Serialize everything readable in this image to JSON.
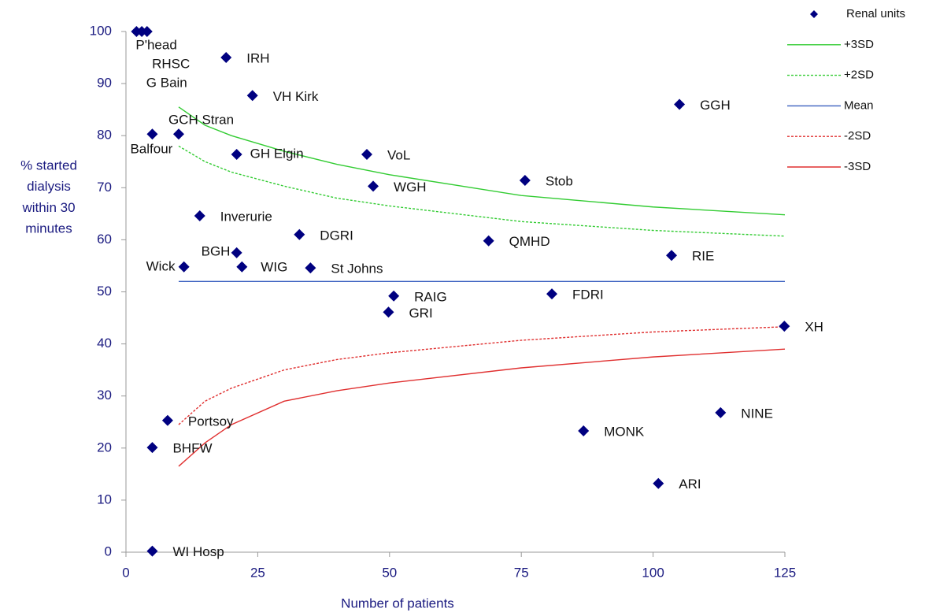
{
  "chart_data": {
    "type": "scatter",
    "xlabel": "Number of patients",
    "ylabel": [
      "% started",
      "dialysis",
      "within 30",
      "minutes"
    ],
    "xlim": [
      0,
      125
    ],
    "xticks": [
      0,
      25,
      50,
      75,
      100,
      125
    ],
    "ylim": [
      0,
      100
    ],
    "yticks": [
      0,
      10,
      20,
      30,
      40,
      50,
      60,
      70,
      80,
      90,
      100
    ],
    "grid": false,
    "legend": "right",
    "series": [
      {
        "name": "Renal units",
        "type": "scatter",
        "color": "#000080",
        "x": [
          2,
          3,
          4,
          19,
          24,
          105,
          10,
          5,
          21,
          45.7,
          46.9,
          75.7,
          14,
          32.9,
          68.8,
          103.5,
          21,
          11,
          22,
          35,
          50.8,
          80.8,
          49.8,
          124.9,
          7.9,
          5,
          86.8,
          112.8,
          101,
          5
        ],
        "values": [
          100,
          100,
          100,
          95,
          87.7,
          86,
          80.3,
          80.3,
          76.4,
          76.4,
          70.3,
          71.4,
          64.6,
          61,
          59.8,
          57,
          57.5,
          54.8,
          54.8,
          54.6,
          49.2,
          49.6,
          46.1,
          43.4,
          25.3,
          20.1,
          23.3,
          26.8,
          13.2,
          0.2
        ],
        "labels": [
          "P'head",
          "RHSC",
          "G Bain",
          "IRH",
          "VH Kirk",
          "GGH",
          "GCH Stran",
          "Balfour",
          "GH Elgin",
          "VoL",
          "WGH",
          "Stob",
          "Inverurie",
          "DGRI",
          "QMHD",
          "RIE",
          "BGH",
          "Wick",
          "WIG",
          "St Johns",
          "RAIG",
          "FDRI",
          "GRI",
          "XH",
          "Portsoy",
          "BHFW",
          "MONK",
          "NINE",
          "ARI",
          "WI Hosp"
        ]
      },
      {
        "name": "+3SD",
        "type": "line",
        "color": "#33cc33",
        "dashed": false,
        "x": [
          10,
          15,
          20,
          30,
          40,
          50,
          75,
          100,
          125
        ],
        "values": [
          85.5,
          82,
          80,
          77,
          74.5,
          72.5,
          68.5,
          66.3,
          64.8
        ]
      },
      {
        "name": "+2SD",
        "type": "line",
        "color": "#33cc33",
        "dashed": true,
        "x": [
          10,
          15,
          20,
          30,
          40,
          50,
          75,
          100,
          125
        ],
        "values": [
          78,
          75,
          73,
          70.3,
          68,
          66.5,
          63.5,
          61.8,
          60.7
        ]
      },
      {
        "name": "Mean",
        "type": "line",
        "color": "#3a5fbf",
        "dashed": false,
        "x": [
          10,
          125
        ],
        "values": [
          52,
          52
        ]
      },
      {
        "name": "-2SD",
        "type": "line",
        "color": "#e03030",
        "dashed": true,
        "x": [
          10,
          15,
          20,
          30,
          40,
          50,
          75,
          100,
          125
        ],
        "values": [
          24.5,
          29,
          31.5,
          35,
          37,
          38.3,
          40.7,
          42.3,
          43.3
        ]
      },
      {
        "name": "-3SD",
        "type": "line",
        "color": "#e03030",
        "dashed": false,
        "x": [
          10,
          15,
          20,
          30,
          40,
          50,
          75,
          100,
          125
        ],
        "values": [
          16.5,
          21,
          24.5,
          29,
          31,
          32.5,
          35.4,
          37.5,
          39
        ]
      }
    ]
  }
}
